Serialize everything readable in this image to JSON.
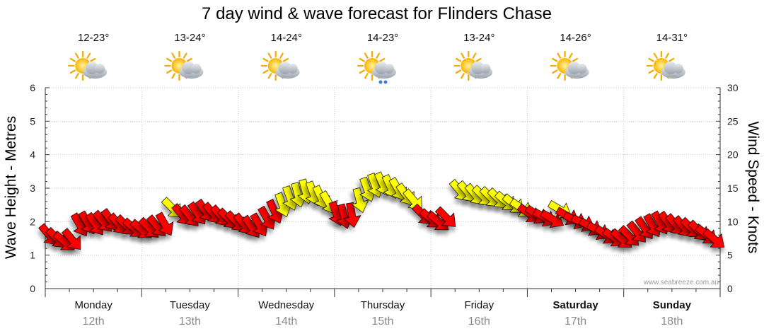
{
  "title": "7 day wind & wave forecast for Flinders Chase",
  "watermark": "www.seabreeze.com.au",
  "colors": {
    "strong_wind": "#ff0000",
    "moderate_wind": "#ffff00",
    "grid": "#aaaaaa",
    "sun": "#f7b500",
    "cloud": "#b9c0c8"
  },
  "days": [
    {
      "name": "Monday",
      "date": "12th",
      "temp": "12-23°",
      "icon": "sun-cloud-icon",
      "bold": false
    },
    {
      "name": "Tuesday",
      "date": "13th",
      "temp": "13-24°",
      "icon": "sun-cloud-icon",
      "bold": false
    },
    {
      "name": "Wednesday",
      "date": "14th",
      "temp": "14-24°",
      "icon": "sun-cloud-icon",
      "bold": false
    },
    {
      "name": "Thursday",
      "date": "15th",
      "temp": "14-23°",
      "icon": "sun-cloud-rain-icon",
      "bold": false
    },
    {
      "name": "Friday",
      "date": "16th",
      "temp": "13-24°",
      "icon": "sun-cloud-icon",
      "bold": false
    },
    {
      "name": "Saturday",
      "date": "17th",
      "temp": "14-26°",
      "icon": "sun-cloud-icon",
      "bold": true
    },
    {
      "name": "Sunday",
      "date": "18th",
      "temp": "14-31°",
      "icon": "sun-cloud-icon",
      "bold": true
    }
  ],
  "chart_data": {
    "type": "line",
    "title": "7 day wind & wave forecast for Flinders Chase",
    "categories": [
      "Monday 12th",
      "Tuesday 13th",
      "Wednesday 14th",
      "Thursday 15th",
      "Friday 16th",
      "Saturday 17th",
      "Sunday 18th"
    ],
    "ylabel_left": "Wave Height - Metres",
    "ylabel_right": "Wind Speed - Knots",
    "ylim_left": [
      0,
      6
    ],
    "ylim_right": [
      0,
      30
    ],
    "yticks_left": [
      "0",
      "1",
      "2",
      "3",
      "4",
      "5",
      "6"
    ],
    "yticks_right": [
      "0",
      "5",
      "10",
      "15",
      "20",
      "25",
      "30"
    ],
    "grid": true,
    "x_range_days": [
      0,
      7
    ],
    "series": [
      {
        "kind": "wind_arrows",
        "points": [
          {
            "x": 0.04,
            "y": 8.0,
            "dir": 320,
            "color": "strong"
          },
          {
            "x": 0.12,
            "y": 7.5,
            "dir": 315,
            "color": "strong"
          },
          {
            "x": 0.2,
            "y": 7.0,
            "dir": 310,
            "color": "strong"
          },
          {
            "x": 0.28,
            "y": 7.3,
            "dir": 320,
            "color": "strong"
          },
          {
            "x": 0.36,
            "y": 9.5,
            "dir": 330,
            "color": "strong"
          },
          {
            "x": 0.44,
            "y": 9.8,
            "dir": 330,
            "color": "strong"
          },
          {
            "x": 0.52,
            "y": 9.6,
            "dir": 325,
            "color": "strong"
          },
          {
            "x": 0.6,
            "y": 10.0,
            "dir": 320,
            "color": "strong"
          },
          {
            "x": 0.68,
            "y": 10.2,
            "dir": 325,
            "color": "strong"
          },
          {
            "x": 0.76,
            "y": 9.6,
            "dir": 320,
            "color": "strong"
          },
          {
            "x": 0.84,
            "y": 9.4,
            "dir": 315,
            "color": "strong"
          },
          {
            "x": 0.92,
            "y": 9.0,
            "dir": 310,
            "color": "strong"
          },
          {
            "x": 1.0,
            "y": 8.8,
            "dir": 310,
            "color": "strong"
          },
          {
            "x": 1.08,
            "y": 9.0,
            "dir": 315,
            "color": "strong"
          },
          {
            "x": 1.16,
            "y": 9.3,
            "dir": 320,
            "color": "strong"
          },
          {
            "x": 1.24,
            "y": 9.6,
            "dir": 330,
            "color": "strong"
          },
          {
            "x": 1.32,
            "y": 12.0,
            "dir": 315,
            "color": "moderate"
          },
          {
            "x": 1.42,
            "y": 11.0,
            "dir": 320,
            "color": "strong"
          },
          {
            "x": 1.5,
            "y": 10.8,
            "dir": 320,
            "color": "strong"
          },
          {
            "x": 1.58,
            "y": 11.2,
            "dir": 325,
            "color": "strong"
          },
          {
            "x": 1.66,
            "y": 11.6,
            "dir": 325,
            "color": "strong"
          },
          {
            "x": 1.74,
            "y": 11.2,
            "dir": 320,
            "color": "strong"
          },
          {
            "x": 1.82,
            "y": 10.8,
            "dir": 320,
            "color": "strong"
          },
          {
            "x": 1.9,
            "y": 10.4,
            "dir": 315,
            "color": "strong"
          },
          {
            "x": 1.98,
            "y": 10.0,
            "dir": 315,
            "color": "strong"
          },
          {
            "x": 2.06,
            "y": 9.6,
            "dir": 320,
            "color": "strong"
          },
          {
            "x": 2.14,
            "y": 9.2,
            "dir": 325,
            "color": "strong"
          },
          {
            "x": 2.22,
            "y": 9.5,
            "dir": 330,
            "color": "strong"
          },
          {
            "x": 2.3,
            "y": 10.5,
            "dir": 330,
            "color": "strong"
          },
          {
            "x": 2.38,
            "y": 11.5,
            "dir": 335,
            "color": "strong"
          },
          {
            "x": 2.46,
            "y": 12.5,
            "dir": 340,
            "color": "moderate"
          },
          {
            "x": 2.54,
            "y": 13.5,
            "dir": 340,
            "color": "moderate"
          },
          {
            "x": 2.62,
            "y": 14.0,
            "dir": 345,
            "color": "moderate"
          },
          {
            "x": 2.7,
            "y": 14.5,
            "dir": 345,
            "color": "moderate"
          },
          {
            "x": 2.78,
            "y": 14.2,
            "dir": 340,
            "color": "moderate"
          },
          {
            "x": 2.86,
            "y": 13.6,
            "dir": 335,
            "color": "moderate"
          },
          {
            "x": 2.94,
            "y": 12.8,
            "dir": 330,
            "color": "moderate"
          },
          {
            "x": 3.02,
            "y": 11.2,
            "dir": 340,
            "color": "strong"
          },
          {
            "x": 3.1,
            "y": 10.8,
            "dir": 345,
            "color": "strong"
          },
          {
            "x": 3.18,
            "y": 11.0,
            "dir": 350,
            "color": "strong"
          },
          {
            "x": 3.26,
            "y": 13.2,
            "dir": 345,
            "color": "moderate"
          },
          {
            "x": 3.34,
            "y": 14.8,
            "dir": 340,
            "color": "moderate"
          },
          {
            "x": 3.42,
            "y": 15.4,
            "dir": 340,
            "color": "moderate"
          },
          {
            "x": 3.5,
            "y": 15.6,
            "dir": 335,
            "color": "moderate"
          },
          {
            "x": 3.58,
            "y": 15.2,
            "dir": 335,
            "color": "moderate"
          },
          {
            "x": 3.66,
            "y": 14.8,
            "dir": 330,
            "color": "moderate"
          },
          {
            "x": 3.74,
            "y": 14.0,
            "dir": 325,
            "color": "moderate"
          },
          {
            "x": 3.82,
            "y": 13.2,
            "dir": 320,
            "color": "moderate"
          },
          {
            "x": 3.92,
            "y": 11.0,
            "dir": 315,
            "color": "strong"
          },
          {
            "x": 4.0,
            "y": 10.4,
            "dir": 310,
            "color": "strong"
          },
          {
            "x": 4.08,
            "y": 10.0,
            "dir": 310,
            "color": "strong"
          },
          {
            "x": 4.16,
            "y": 10.6,
            "dir": 315,
            "color": "strong"
          },
          {
            "x": 4.3,
            "y": 14.6,
            "dir": 320,
            "color": "moderate"
          },
          {
            "x": 4.38,
            "y": 14.4,
            "dir": 320,
            "color": "moderate"
          },
          {
            "x": 4.46,
            "y": 14.0,
            "dir": 320,
            "color": "moderate"
          },
          {
            "x": 4.54,
            "y": 13.8,
            "dir": 315,
            "color": "moderate"
          },
          {
            "x": 4.62,
            "y": 13.6,
            "dir": 315,
            "color": "moderate"
          },
          {
            "x": 4.7,
            "y": 13.4,
            "dir": 315,
            "color": "moderate"
          },
          {
            "x": 4.78,
            "y": 13.0,
            "dir": 310,
            "color": "moderate"
          },
          {
            "x": 4.86,
            "y": 12.6,
            "dir": 310,
            "color": "moderate"
          },
          {
            "x": 4.94,
            "y": 12.0,
            "dir": 305,
            "color": "moderate"
          },
          {
            "x": 5.02,
            "y": 11.2,
            "dir": 305,
            "color": "strong"
          },
          {
            "x": 5.1,
            "y": 11.0,
            "dir": 305,
            "color": "strong"
          },
          {
            "x": 5.18,
            "y": 10.6,
            "dir": 300,
            "color": "strong"
          },
          {
            "x": 5.26,
            "y": 10.4,
            "dir": 300,
            "color": "strong"
          },
          {
            "x": 5.34,
            "y": 11.8,
            "dir": 300,
            "color": "moderate"
          },
          {
            "x": 5.42,
            "y": 10.8,
            "dir": 300,
            "color": "strong"
          },
          {
            "x": 5.5,
            "y": 10.2,
            "dir": 295,
            "color": "strong"
          },
          {
            "x": 5.58,
            "y": 9.8,
            "dir": 295,
            "color": "strong"
          },
          {
            "x": 5.66,
            "y": 9.2,
            "dir": 300,
            "color": "strong"
          },
          {
            "x": 5.74,
            "y": 8.6,
            "dir": 300,
            "color": "strong"
          },
          {
            "x": 5.82,
            "y": 8.0,
            "dir": 305,
            "color": "strong"
          },
          {
            "x": 5.9,
            "y": 7.6,
            "dir": 305,
            "color": "strong"
          },
          {
            "x": 5.98,
            "y": 7.4,
            "dir": 310,
            "color": "strong"
          },
          {
            "x": 6.06,
            "y": 7.8,
            "dir": 315,
            "color": "strong"
          },
          {
            "x": 6.14,
            "y": 8.4,
            "dir": 320,
            "color": "strong"
          },
          {
            "x": 6.22,
            "y": 9.0,
            "dir": 325,
            "color": "strong"
          },
          {
            "x": 6.3,
            "y": 9.4,
            "dir": 330,
            "color": "strong"
          },
          {
            "x": 6.38,
            "y": 9.8,
            "dir": 330,
            "color": "strong"
          },
          {
            "x": 6.46,
            "y": 9.8,
            "dir": 325,
            "color": "strong"
          },
          {
            "x": 6.54,
            "y": 9.5,
            "dir": 320,
            "color": "strong"
          },
          {
            "x": 6.62,
            "y": 9.2,
            "dir": 320,
            "color": "strong"
          },
          {
            "x": 6.7,
            "y": 9.0,
            "dir": 315,
            "color": "strong"
          },
          {
            "x": 6.78,
            "y": 8.6,
            "dir": 315,
            "color": "strong"
          },
          {
            "x": 6.86,
            "y": 8.0,
            "dir": 310,
            "color": "strong"
          },
          {
            "x": 6.94,
            "y": 7.4,
            "dir": 310,
            "color": "strong"
          }
        ]
      }
    ]
  }
}
